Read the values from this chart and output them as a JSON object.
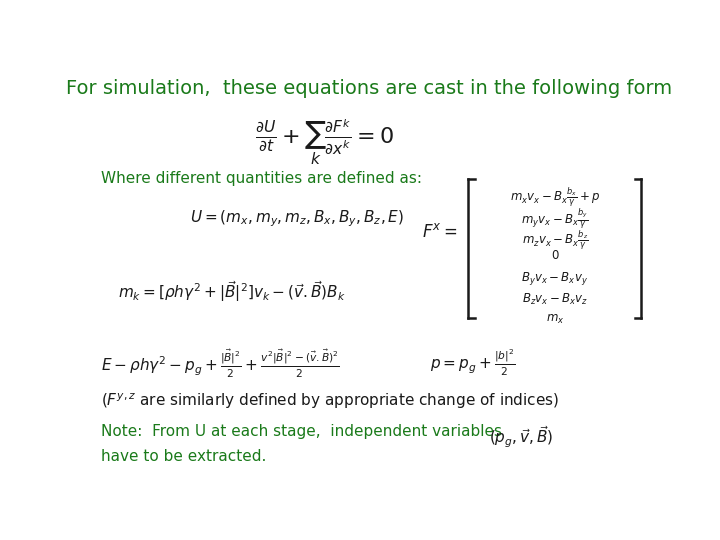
{
  "background_color": "#ffffff",
  "title_text": "For simulation,  these equations are cast in the following form",
  "title_color": "#1a7a1a",
  "title_fontsize": 14,
  "text_color": "#1a1a1a",
  "green_color": "#1a7a1a",
  "matrix_lines": [
    "$m_x v_x - B_x\\frac{b_x}{\\gamma} + p$",
    "$m_y v_x - B_x\\frac{b_y}{\\gamma}$",
    "$m_z v_x - B_x\\frac{b_z}{\\gamma}$",
    "$0$",
    "$B_y v_x - B_x v_y$",
    "$B_z v_x - B_x v_z$",
    "$m_x$"
  ],
  "note_line1": "Note:  From U at each stage,  independent variables",
  "note_line2": "have to be extracted.",
  "figsize": [
    7.2,
    5.4
  ],
  "dpi": 100
}
